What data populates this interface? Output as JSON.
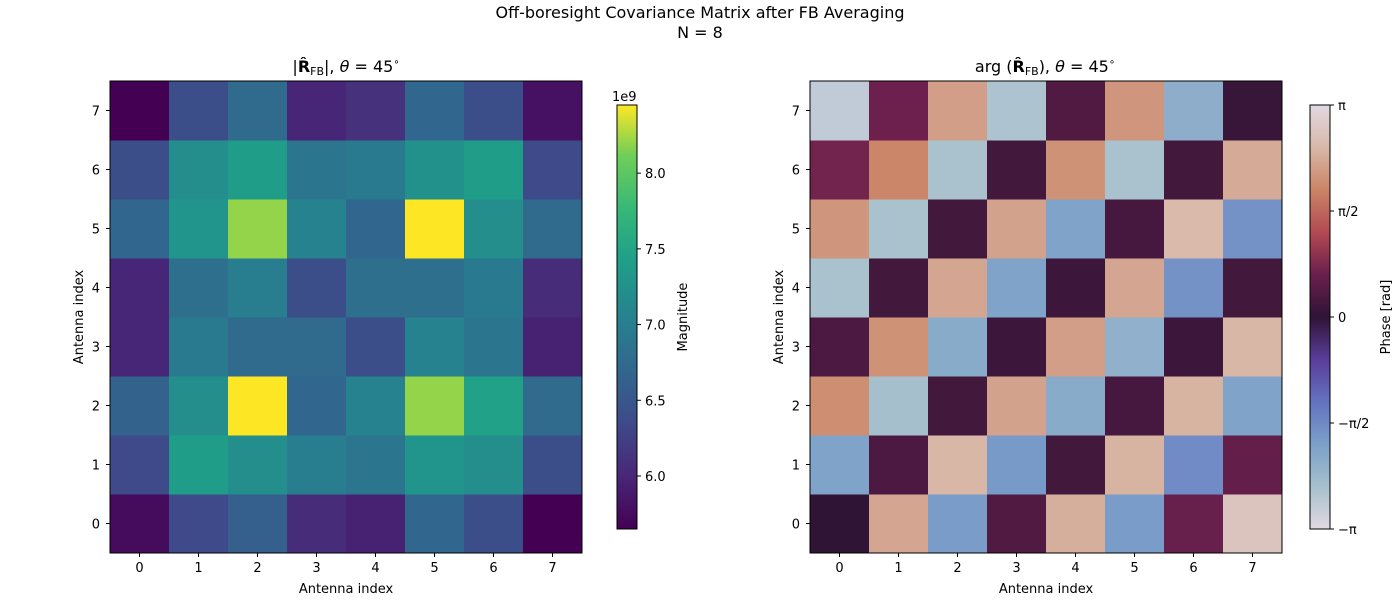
{
  "figure": {
    "suptitle": "Off-boresight Covariance Matrix after FB Averaging",
    "subtitle": "N = 8"
  },
  "chart_data": [
    {
      "type": "heatmap",
      "title": "|R̂FB|, θ = 45°",
      "title_parts": {
        "open": "|",
        "R": "R̂",
        "sub": "FB",
        "mid": "|, ",
        "theta": "θ",
        "eq": " = 45",
        "deg": "∘"
      },
      "xlabel": "Antenna index",
      "ylabel": "Antenna index",
      "x_ticks": [
        "0",
        "1",
        "2",
        "3",
        "4",
        "5",
        "6",
        "7"
      ],
      "y_ticks": [
        "0",
        "1",
        "2",
        "3",
        "4",
        "5",
        "6",
        "7"
      ],
      "colormap": "viridis",
      "colorbar": {
        "label": "Magnitude",
        "exponent": "1e9",
        "vmin": 5.65,
        "vmax": 8.45,
        "ticks": [
          6.0,
          6.5,
          7.0,
          7.5,
          8.0
        ],
        "tick_labels": [
          "6.0",
          "6.5",
          "7.0",
          "7.5",
          "8.0"
        ]
      },
      "values_row_order": "rows listed from y=0 (bottom) to y=7 (top)",
      "values": [
        [
          5.75,
          6.35,
          6.6,
          6.05,
          5.95,
          6.7,
          6.4,
          5.65
        ],
        [
          6.35,
          7.4,
          7.2,
          7.0,
          6.9,
          7.3,
          7.2,
          6.4
        ],
        [
          6.65,
          7.2,
          8.45,
          6.7,
          7.05,
          8.2,
          7.45,
          6.75
        ],
        [
          6.0,
          6.95,
          6.75,
          6.75,
          6.4,
          7.05,
          6.9,
          5.95
        ],
        [
          6.0,
          6.8,
          7.0,
          6.4,
          6.8,
          6.8,
          6.95,
          6.05
        ],
        [
          6.7,
          7.3,
          8.2,
          7.05,
          6.7,
          8.45,
          7.2,
          6.75
        ],
        [
          6.4,
          7.2,
          7.4,
          6.9,
          6.95,
          7.25,
          7.4,
          6.35
        ],
        [
          5.65,
          6.4,
          6.75,
          6.0,
          6.1,
          6.7,
          6.4,
          5.8
        ]
      ]
    },
    {
      "type": "heatmap",
      "title": "arg(R̂FB), θ = 45°",
      "title_parts": {
        "arg": "arg",
        "R": "R̂",
        "sub": "FB",
        "theta": "θ",
        "eq": " = 45",
        "deg": "∘"
      },
      "xlabel": "Antenna index",
      "ylabel": "Antenna index",
      "x_ticks": [
        "0",
        "1",
        "2",
        "3",
        "4",
        "5",
        "6",
        "7"
      ],
      "y_ticks": [
        "0",
        "1",
        "2",
        "3",
        "4",
        "5",
        "6",
        "7"
      ],
      "colormap": "twilight",
      "colorbar": {
        "label": "Phase [rad]",
        "vmin": -3.14159,
        "vmax": 3.14159,
        "ticks": [
          -3.14159,
          -1.5708,
          0,
          1.5708,
          3.14159
        ],
        "tick_labels": [
          "−π",
          "−π/2",
          "0",
          "π/2",
          "π"
        ]
      },
      "values_row_order": "rows listed from y=0 (bottom) to y=7 (top)",
      "values": [
        [
          0.0,
          2.3,
          -1.85,
          0.35,
          2.4,
          -1.85,
          0.6,
          2.75
        ],
        [
          -1.95,
          0.3,
          2.5,
          -1.8,
          0.2,
          2.45,
          -1.6,
          0.55
        ],
        [
          2.0,
          -2.5,
          0.2,
          2.25,
          -2.1,
          0.25,
          2.45,
          -1.95
        ],
        [
          0.3,
          2.05,
          -2.1,
          0.15,
          2.2,
          -2.2,
          0.15,
          2.5
        ],
        [
          -2.55,
          0.2,
          2.3,
          -1.95,
          0.15,
          2.3,
          -1.7,
          0.2
        ],
        [
          2.1,
          -2.55,
          0.2,
          2.25,
          -1.95,
          0.25,
          2.55,
          -1.7
        ],
        [
          0.7,
          1.9,
          -2.55,
          0.2,
          2.05,
          -2.55,
          0.2,
          2.35
        ],
        [
          -2.8,
          0.65,
          2.2,
          -2.6,
          0.35,
          2.1,
          -2.15,
          0.1
        ]
      ]
    }
  ]
}
